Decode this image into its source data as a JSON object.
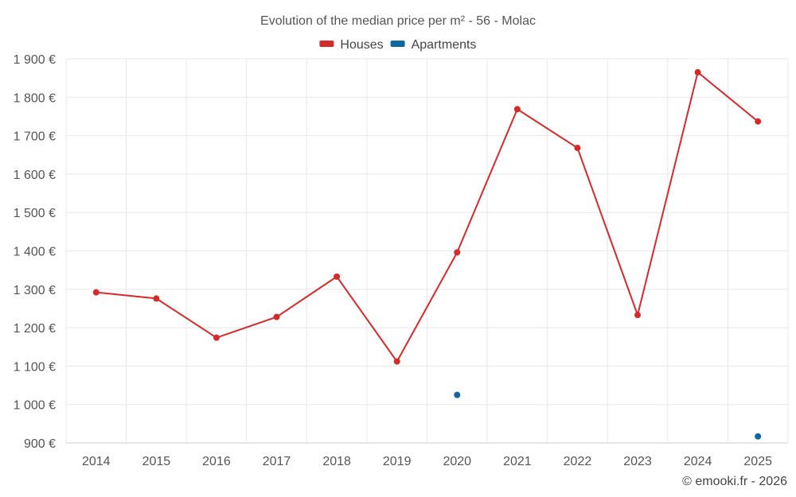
{
  "chart_data": {
    "type": "line",
    "title": "Evolution of the median price per m² - 56 - Molac",
    "categories": [
      "2014",
      "2015",
      "2016",
      "2017",
      "2018",
      "2019",
      "2020",
      "2021",
      "2022",
      "2023",
      "2024",
      "2025"
    ],
    "y_tick_labels": [
      "900 €",
      "1 000 €",
      "1 100 €",
      "1 200 €",
      "1 300 €",
      "1 400 €",
      "1 500 €",
      "1 600 €",
      "1 700 €",
      "1 800 €",
      "1 900 €"
    ],
    "y_ticks": [
      900,
      1000,
      1100,
      1200,
      1300,
      1400,
      1500,
      1600,
      1700,
      1800,
      1900
    ],
    "ylim": [
      900,
      1900
    ],
    "grid": true,
    "legend_position": "top-center",
    "series": [
      {
        "name": "Houses",
        "color": "#d62a2a",
        "values": [
          1292,
          1276,
          1174,
          1228,
          1333,
          1112,
          1396,
          1769,
          1668,
          1233,
          1865,
          1737
        ]
      },
      {
        "name": "Apartments",
        "color": "#0e67a0",
        "values": [
          null,
          null,
          null,
          null,
          null,
          null,
          1025,
          null,
          null,
          null,
          null,
          917
        ]
      }
    ],
    "credit": "© emooki.fr - 2026"
  }
}
